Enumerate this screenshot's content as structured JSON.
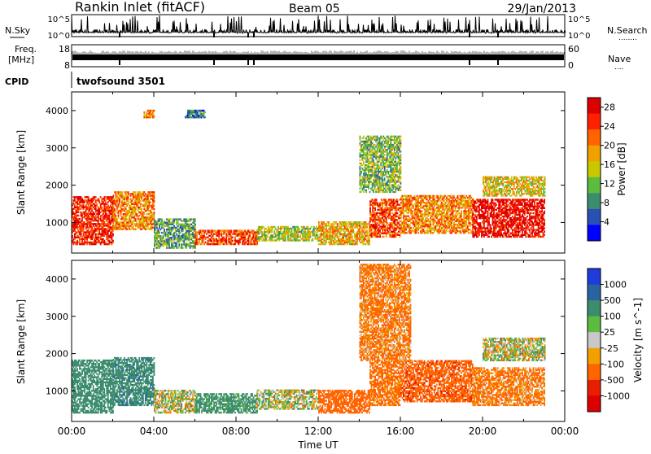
{
  "header": {
    "site": "Rankin Inlet (fitACF)",
    "beam": "Beam 05",
    "date": "29/Jan/2013"
  },
  "strip_labels": {
    "nsky": "N.Sky",
    "nsearch": "N.Search",
    "nsearch_dots": "........",
    "freq": "Freq.",
    "mhz": "[MHz]",
    "nave": "Nave",
    "nave_dots": "....",
    "cpid": "CPID",
    "cpid_value": "twofsound 3501",
    "noise_ticks_left": [
      "10^5",
      "10^0"
    ],
    "noise_ticks_right": [
      "10^5",
      "10^0"
    ],
    "freq_ticks": [
      "18",
      "8"
    ],
    "nave_ticks": [
      "60",
      "0"
    ]
  },
  "colors": {
    "power_scale": [
      "#0000ff",
      "#2a50b4",
      "#3c8c6e",
      "#5cbc40",
      "#c8c800",
      "#f0a000",
      "#ff6400",
      "#ff2000",
      "#dd0000"
    ],
    "velocity_scale": [
      "#1e3cdc",
      "#2a64a0",
      "#3c8c6e",
      "#5cbc40",
      "#c8c8c8",
      "#f0a000",
      "#ff6400",
      "#e81e00",
      "#dd0000"
    ]
  },
  "chart_data": [
    {
      "type": "heatmap",
      "ylabel": "Slant Range [km]",
      "xlabel": "",
      "xlim": [
        0,
        24
      ],
      "ylim": [
        180,
        4500
      ],
      "x_tick_labels": [],
      "y_ticks": [
        1000,
        2000,
        3000,
        4000
      ],
      "colorbar": {
        "label": "Power [dB]",
        "tick_labels": [
          "4",
          "8",
          "12",
          "16",
          "20",
          "24",
          "28"
        ],
        "range": [
          0,
          30
        ]
      },
      "echo_regions": [
        {
          "t": [
            0.0,
            2.0
          ],
          "r": [
            400,
            1700
          ],
          "value": 26
        },
        {
          "t": [
            2.0,
            4.0
          ],
          "r": [
            800,
            1800
          ],
          "value": 20
        },
        {
          "t": [
            4.0,
            6.0
          ],
          "r": [
            300,
            1100
          ],
          "value": 10
        },
        {
          "t": [
            6.0,
            9.0
          ],
          "r": [
            400,
            800
          ],
          "value": 24
        },
        {
          "t": [
            9.0,
            12.0
          ],
          "r": [
            500,
            900
          ],
          "value": 14
        },
        {
          "t": [
            12.0,
            14.5
          ],
          "r": [
            400,
            1000
          ],
          "value": 18
        },
        {
          "t": [
            14.5,
            16.0
          ],
          "r": [
            600,
            1600
          ],
          "value": 24
        },
        {
          "t": [
            16.0,
            19.5
          ],
          "r": [
            700,
            1700
          ],
          "value": 20
        },
        {
          "t": [
            19.5,
            23.0
          ],
          "r": [
            600,
            1600
          ],
          "value": 28
        },
        {
          "t": [
            3.5,
            4.0
          ],
          "r": [
            3800,
            4000
          ],
          "value": 20
        },
        {
          "t": [
            14.0,
            16.0
          ],
          "r": [
            1800,
            3300
          ],
          "value": 12
        },
        {
          "t": [
            20.0,
            23.0
          ],
          "r": [
            1700,
            2200
          ],
          "value": 16
        },
        {
          "t": [
            5.5,
            6.5
          ],
          "r": [
            3800,
            4000
          ],
          "value": 8
        }
      ]
    },
    {
      "type": "heatmap",
      "ylabel": "Slant Range [km]",
      "xlabel": "Time UT",
      "xlim": [
        0,
        24
      ],
      "ylim": [
        180,
        4500
      ],
      "x_tick_labels": [
        "00:00",
        "04:00",
        "08:00",
        "12:00",
        "16:00",
        "20:00",
        "00:00"
      ],
      "y_ticks": [
        1000,
        2000,
        3000,
        4000
      ],
      "colorbar": {
        "label": "Velocity [m s^-1]",
        "tick_labels": [
          "1000",
          "500",
          "100",
          "25",
          "-25",
          "-100",
          "-500",
          "-1000"
        ]
      },
      "echo_regions": [
        {
          "t": [
            0.0,
            2.0
          ],
          "r": [
            400,
            1800
          ],
          "value": 300
        },
        {
          "t": [
            2.0,
            4.0
          ],
          "r": [
            600,
            1900
          ],
          "value": 400
        },
        {
          "t": [
            4.0,
            6.0
          ],
          "r": [
            400,
            1000
          ],
          "value": 20
        },
        {
          "t": [
            6.0,
            9.0
          ],
          "r": [
            400,
            900
          ],
          "value": 200
        },
        {
          "t": [
            9.0,
            12.0
          ],
          "r": [
            500,
            1000
          ],
          "value": 10
        },
        {
          "t": [
            12.0,
            14.5
          ],
          "r": [
            400,
            1000
          ],
          "value": -300
        },
        {
          "t": [
            14.5,
            16.0
          ],
          "r": [
            600,
            1800
          ],
          "value": -200
        },
        {
          "t": [
            16.0,
            19.5
          ],
          "r": [
            700,
            1800
          ],
          "value": -400
        },
        {
          "t": [
            19.5,
            23.0
          ],
          "r": [
            600,
            1600
          ],
          "value": -150
        },
        {
          "t": [
            14.0,
            16.5
          ],
          "r": [
            1800,
            4400
          ],
          "value": -150
        },
        {
          "t": [
            20.0,
            23.0
          ],
          "r": [
            1800,
            2400
          ],
          "value": 10
        }
      ]
    }
  ]
}
